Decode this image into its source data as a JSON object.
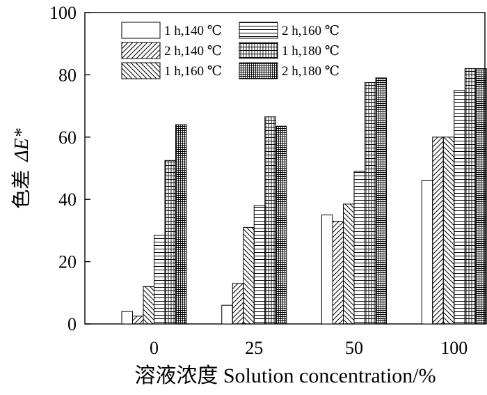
{
  "chart_data": {
    "type": "bar",
    "title": "",
    "xlabel": "溶液浓度 Solution concentration/%",
    "ylabel": "色差",
    "ylabel_symbol": "ΔE*",
    "categories": [
      "0",
      "25",
      "50",
      "100"
    ],
    "ylim": [
      0,
      100
    ],
    "yticks": [
      "0",
      "20",
      "40",
      "60",
      "80",
      "100"
    ],
    "grid": false,
    "legend_position": "top-left",
    "series": [
      {
        "name": "1 h,140 ℃",
        "pattern": "empty",
        "values": [
          4,
          6,
          35,
          46
        ]
      },
      {
        "name": "2 h,140 ℃",
        "pattern": "diag-up",
        "values": [
          2.5,
          13,
          33,
          60
        ]
      },
      {
        "name": "1 h,160 ℃",
        "pattern": "diag-down",
        "values": [
          12,
          31,
          38.5,
          60
        ]
      },
      {
        "name": "2 h,160 ℃",
        "pattern": "hlines",
        "values": [
          28.5,
          38,
          49,
          75
        ]
      },
      {
        "name": "1 h,180 ℃",
        "pattern": "grid",
        "values": [
          52.5,
          66.5,
          77.5,
          82
        ]
      },
      {
        "name": "2 h,180 ℃",
        "pattern": "dense",
        "values": [
          64,
          63.5,
          79,
          82
        ]
      }
    ]
  }
}
